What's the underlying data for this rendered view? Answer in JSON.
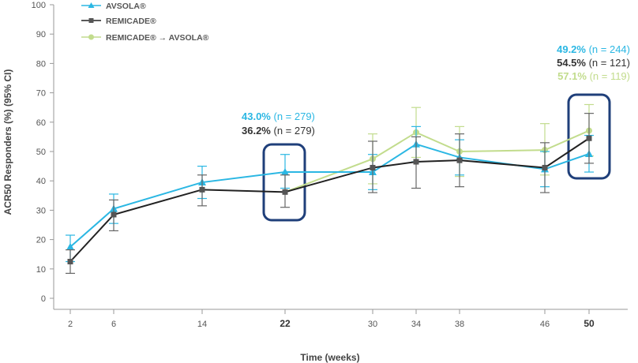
{
  "colors": {
    "avsola": "#2bb7e3",
    "remicade": "#222222",
    "switch": "#c2dc8d",
    "highlight_box": "#1f3f7a",
    "axis": "#999999",
    "error_remicade": "#666666"
  },
  "chart_data": {
    "type": "line",
    "title": "",
    "xlabel": "Time (weeks)",
    "ylabel": "ACR50 Responders (%) (95% CI)",
    "ylim": [
      0,
      100
    ],
    "yticks": [
      "0",
      "10",
      "20",
      "30",
      "40",
      "50",
      "60",
      "70",
      "80",
      "90",
      "100"
    ],
    "x_ticks": [
      {
        "value": 2,
        "label": "2",
        "bold": false
      },
      {
        "value": 6,
        "label": "6",
        "bold": false
      },
      {
        "value": 14,
        "label": "14",
        "bold": false
      },
      {
        "value": 22,
        "label": "22",
        "bold": true
      },
      {
        "value": 30,
        "label": "30",
        "bold": false
      },
      {
        "value": 34,
        "label": "34",
        "bold": false
      },
      {
        "value": 38,
        "label": "38",
        "bold": false
      },
      {
        "value": 46,
        "label": "46",
        "bold": false
      },
      {
        "value": 50,
        "label": "50",
        "bold": true
      }
    ],
    "legend_position": "top-left",
    "series": [
      {
        "name": "AVSOLA®",
        "key": "avsola",
        "marker": "triangle",
        "points": [
          {
            "x": 2,
            "y": 17.5,
            "lo": 12.5,
            "hi": 21.5
          },
          {
            "x": 6,
            "y": 30.5,
            "lo": 25.5,
            "hi": 35.5
          },
          {
            "x": 14,
            "y": 39.5,
            "lo": 34.0,
            "hi": 45.0
          },
          {
            "x": 22,
            "y": 43.0,
            "lo": 37.5,
            "hi": 49.0
          },
          {
            "x": 30,
            "y": 43.0,
            "lo": 37.0,
            "hi": 49.0
          },
          {
            "x": 34,
            "y": 52.5,
            "lo": 46.5,
            "hi": 58.5
          },
          {
            "x": 38,
            "y": 48.0,
            "lo": 42.0,
            "hi": 54.0
          },
          {
            "x": 46,
            "y": 44.0,
            "lo": 38.0,
            "hi": 50.0
          },
          {
            "x": 50,
            "y": 49.2,
            "lo": 43.0,
            "hi": 55.5
          }
        ]
      },
      {
        "name": "REMICADE®",
        "key": "remicade",
        "marker": "square",
        "points": [
          {
            "x": 2,
            "y": 12.5,
            "lo": 8.5,
            "hi": 16.5
          },
          {
            "x": 6,
            "y": 28.5,
            "lo": 23.0,
            "hi": 33.5
          },
          {
            "x": 14,
            "y": 37.0,
            "lo": 31.5,
            "hi": 42.0
          },
          {
            "x": 22,
            "y": 36.2,
            "lo": 31.0,
            "hi": 42.0
          },
          {
            "x": 30,
            "y": 44.5,
            "lo": 36.0,
            "hi": 53.5
          },
          {
            "x": 34,
            "y": 46.5,
            "lo": 37.5,
            "hi": 55.0
          },
          {
            "x": 38,
            "y": 47.0,
            "lo": 38.0,
            "hi": 56.0
          },
          {
            "x": 46,
            "y": 44.5,
            "lo": 36.0,
            "hi": 53.0
          },
          {
            "x": 50,
            "y": 54.5,
            "lo": 46.0,
            "hi": 63.0
          }
        ]
      },
      {
        "name": "REMICADE® → AVSOLA®",
        "key": "switch",
        "marker": "circle",
        "points": [
          {
            "x": 22,
            "y": 36.2,
            "lo": 36.2,
            "hi": 36.2
          },
          {
            "x": 30,
            "y": 47.5,
            "lo": 39.0,
            "hi": 56.0
          },
          {
            "x": 34,
            "y": 56.5,
            "lo": 48.0,
            "hi": 65.0
          },
          {
            "x": 38,
            "y": 50.0,
            "lo": 41.5,
            "hi": 58.5
          },
          {
            "x": 46,
            "y": 50.5,
            "lo": 42.0,
            "hi": 59.5
          },
          {
            "x": 50,
            "y": 57.1,
            "lo": 48.5,
            "hi": 66.0
          }
        ]
      }
    ],
    "highlight_weeks": [
      22,
      50
    ],
    "annotations": [
      {
        "week": 22,
        "lines": [
          {
            "pct": "43.0%",
            "n": " (n = 279)",
            "series": "avsola"
          },
          {
            "pct": "36.2%",
            "n": " (n = 279)",
            "series": "remicade"
          }
        ]
      },
      {
        "week": 50,
        "lines": [
          {
            "pct": "49.2%",
            "n": " (n = 244)",
            "series": "avsola"
          },
          {
            "pct": "54.5%",
            "n": " (n = 121)",
            "series": "remicade"
          },
          {
            "pct": "57.1%",
            "n": " (n = 119)",
            "series": "switch"
          }
        ]
      }
    ]
  }
}
